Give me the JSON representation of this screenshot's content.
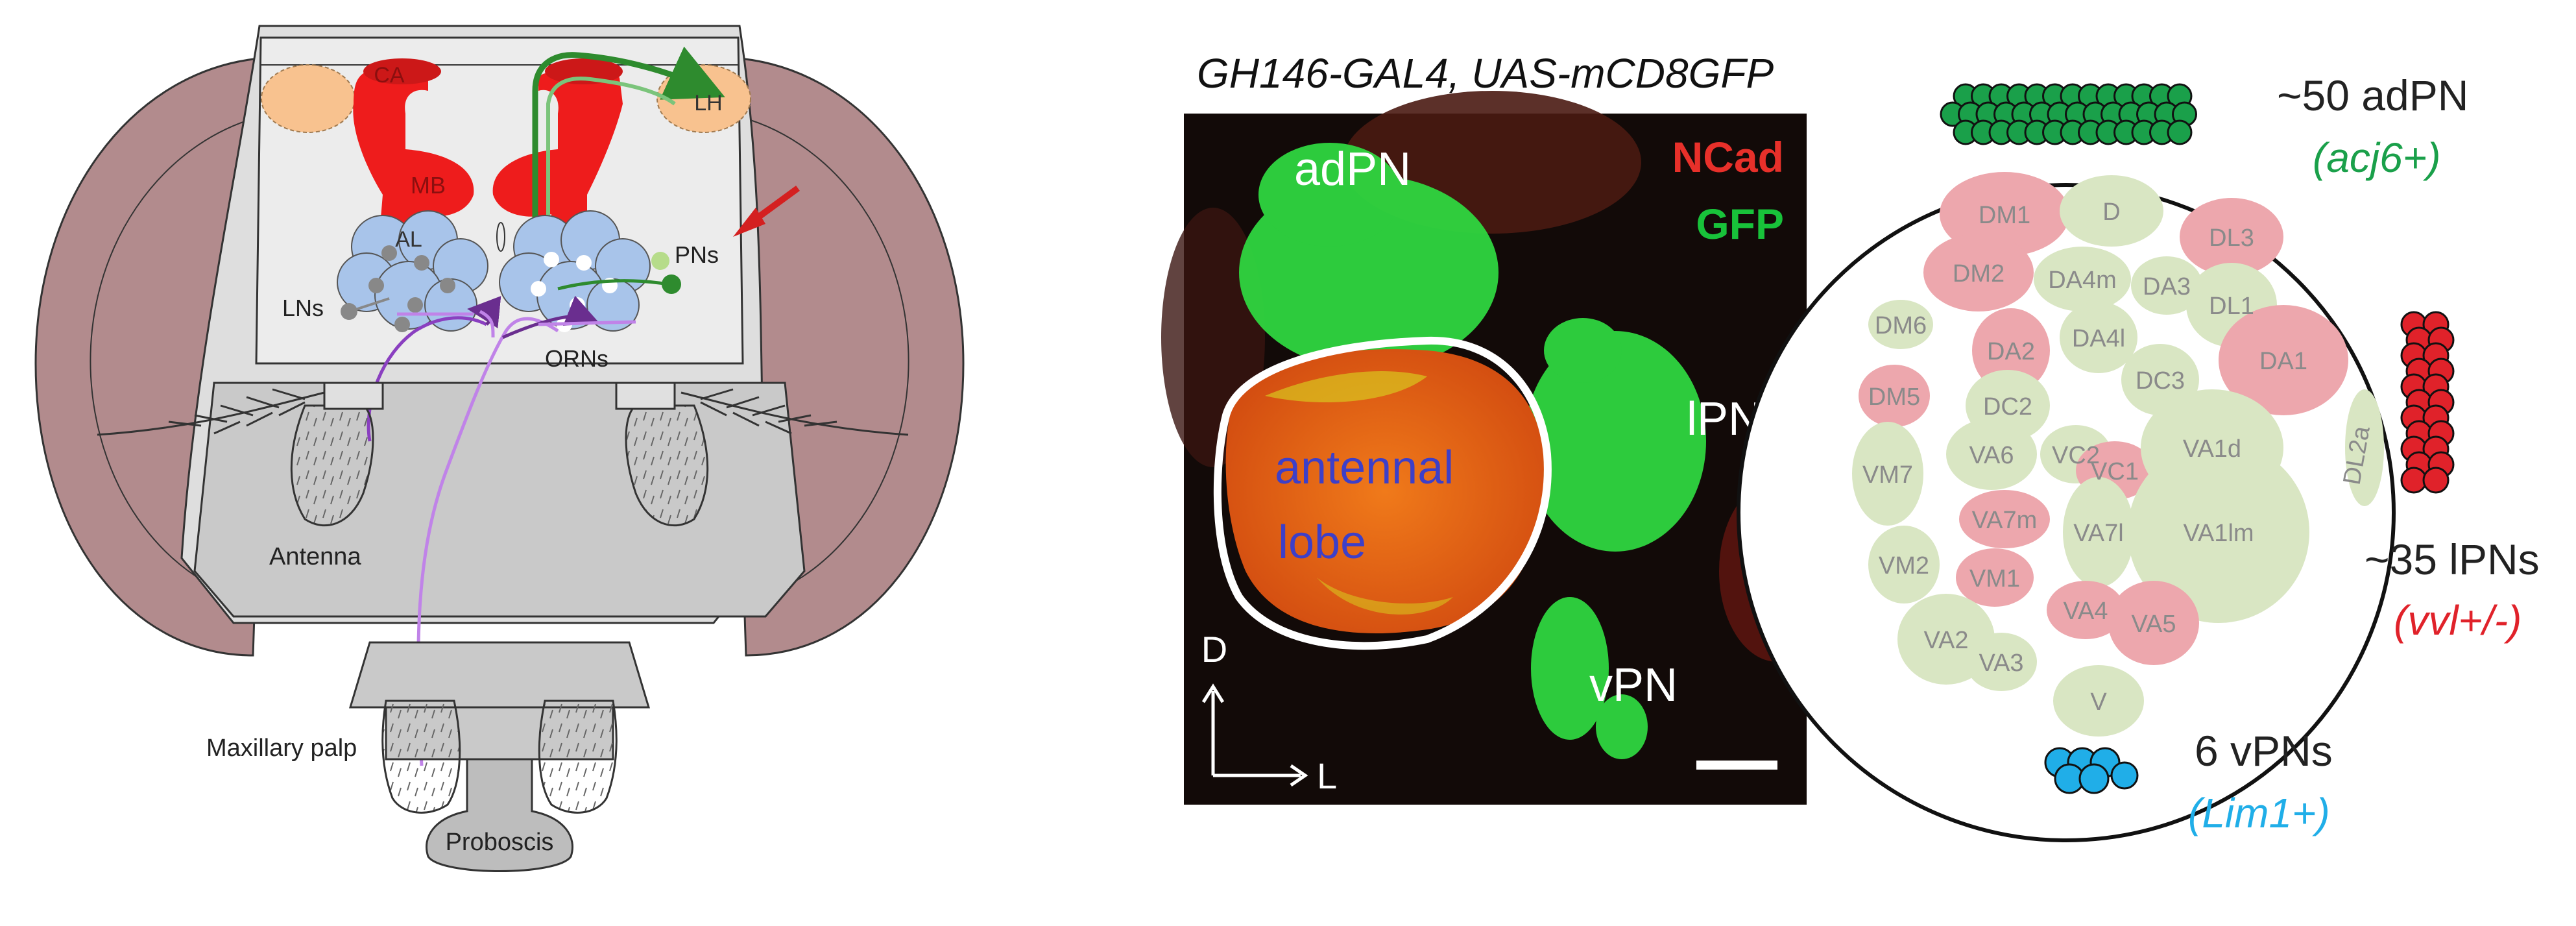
{
  "head_diagram": {
    "labels": {
      "ca": "CA",
      "lh": "LH",
      "mb": "MB",
      "al": "AL",
      "pns": "PNs",
      "lns": "LNs",
      "orns": "ORNs",
      "antenna": "Antenna",
      "maxillary_palp": "Maxillary palp",
      "proboscis": "Proboscis"
    },
    "colors": {
      "eye": "#b28b8d",
      "head_capsule": "#e2e2e2",
      "brain": "#ebebeb",
      "mushroom_body": "#ee1c1c",
      "lateral_horn": "#f8c28f",
      "antennal_lobe": "#a8c4ea",
      "pn_green": "#2e8b2e",
      "orn_purple": "#a35fd0",
      "arrow": "#d42020"
    }
  },
  "micrograph": {
    "title": "GH146-GAL4, UAS-mCD8GFP",
    "stain_ncad": "NCad",
    "stain_gfp": "GFP",
    "adpn": "adPN",
    "lpn": "lPN",
    "vpn": "vPN",
    "lobe_line1": "antennal",
    "lobe_line2": "lobe",
    "axis_d": "D",
    "axis_l": "L",
    "colors": {
      "ncad": "#e8302a",
      "gfp": "#18c23a",
      "lobe_text": "#3d3fc8"
    }
  },
  "schematic": {
    "adpn_count": "~50 adPN",
    "adpn_marker": "(acj6+)",
    "lpn_count": "~35 lPNs",
    "lpn_marker": "(vvl+/-)",
    "vpn_count": "6 vPNs",
    "vpn_marker": "(Lim1+)",
    "colors": {
      "adpn": "#1aa04a",
      "lpn": "#e0222a",
      "vpn": "#20aee8",
      "green_glom": "#d9e6c3",
      "red_glom": "#eda7ad"
    },
    "glomeruli": [
      {
        "name": "DM1",
        "type": "red"
      },
      {
        "name": "D",
        "type": "green"
      },
      {
        "name": "DL3",
        "type": "red"
      },
      {
        "name": "DM2",
        "type": "red"
      },
      {
        "name": "DA4m",
        "type": "green"
      },
      {
        "name": "DA3",
        "type": "green"
      },
      {
        "name": "DL1",
        "type": "green"
      },
      {
        "name": "DM6",
        "type": "green"
      },
      {
        "name": "DA2",
        "type": "red"
      },
      {
        "name": "DA4l",
        "type": "green"
      },
      {
        "name": "DA1",
        "type": "red"
      },
      {
        "name": "DM5",
        "type": "red"
      },
      {
        "name": "DC2",
        "type": "green"
      },
      {
        "name": "DC3",
        "type": "green"
      },
      {
        "name": "DL2a",
        "type": "green"
      },
      {
        "name": "VA6",
        "type": "green"
      },
      {
        "name": "VC2",
        "type": "green"
      },
      {
        "name": "VC1",
        "type": "red"
      },
      {
        "name": "VA1d",
        "type": "green"
      },
      {
        "name": "VM7",
        "type": "green"
      },
      {
        "name": "VA7m",
        "type": "red"
      },
      {
        "name": "VA7l",
        "type": "green"
      },
      {
        "name": "VA1lm",
        "type": "green"
      },
      {
        "name": "VM2",
        "type": "green"
      },
      {
        "name": "VM1",
        "type": "red"
      },
      {
        "name": "VA4",
        "type": "red"
      },
      {
        "name": "VA5",
        "type": "red"
      },
      {
        "name": "VA2",
        "type": "green"
      },
      {
        "name": "VA3",
        "type": "green"
      },
      {
        "name": "V",
        "type": "green"
      }
    ]
  }
}
